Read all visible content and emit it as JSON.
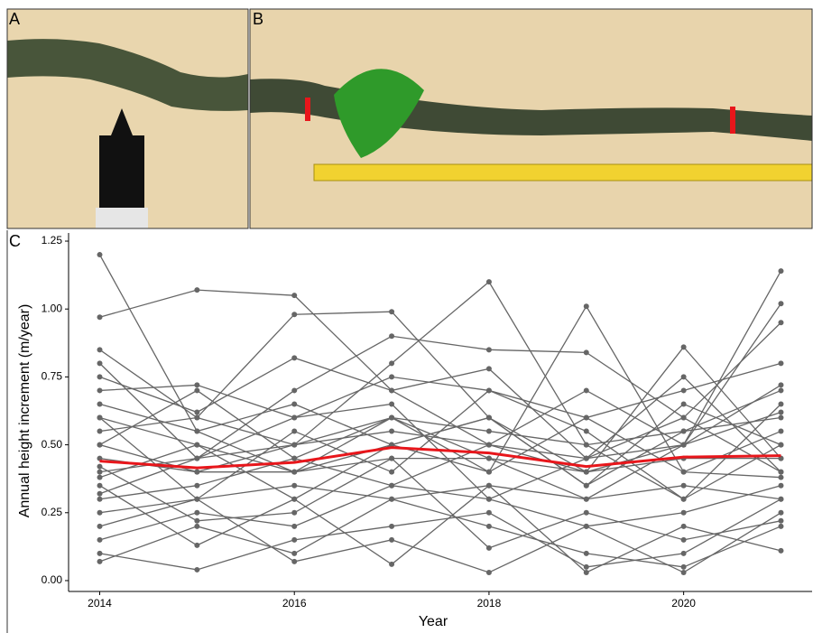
{
  "panel_labels": [
    "A",
    "B",
    "C"
  ],
  "chart_data": {
    "type": "line",
    "x_label": "Year",
    "y_label": "Annual height increment (m/year)",
    "x": [
      2014,
      2015,
      2016,
      2017,
      2018,
      2019,
      2020,
      2021
    ],
    "xlim": [
      2013.68,
      2021.32
    ],
    "xticks": [
      2014,
      2016,
      2018,
      2020
    ],
    "ylim": [
      -0.04,
      1.28
    ],
    "yticks": [
      {
        "value": 0,
        "label": "0.00"
      },
      {
        "value": 0.25,
        "label": "0.25"
      },
      {
        "value": 0.5,
        "label": "0.50"
      },
      {
        "value": 0.75,
        "label": "0.75"
      },
      {
        "value": 1,
        "label": "1.00"
      },
      {
        "value": 1.25,
        "label": "1.25"
      }
    ],
    "series": [
      {
        "color": "#666666",
        "values": [
          1.2,
          0.55,
          0.4,
          0.6,
          0.45,
          0.3,
          0.5,
          0.62
        ]
      },
      {
        "color": "#666666",
        "values": [
          0.97,
          1.07,
          1.05,
          0.7,
          0.5,
          0.45,
          0.6,
          0.4
        ]
      },
      {
        "color": "#666666",
        "values": [
          0.85,
          0.6,
          0.98,
          0.99,
          0.6,
          0.35,
          0.55,
          0.7
        ]
      },
      {
        "color": "#666666",
        "values": [
          0.5,
          0.4,
          0.5,
          0.8,
          1.1,
          0.5,
          0.3,
          0.5
        ]
      },
      {
        "color": "#666666",
        "values": [
          0.3,
          0.35,
          0.45,
          0.6,
          0.4,
          1.01,
          0.4,
          0.55
        ]
      },
      {
        "color": "#666666",
        "values": [
          0.6,
          0.5,
          0.4,
          0.5,
          0.6,
          0.4,
          0.86,
          0.45
        ]
      },
      {
        "color": "#666666",
        "values": [
          0.4,
          0.45,
          0.5,
          0.55,
          0.5,
          0.4,
          0.5,
          1.14
        ]
      },
      {
        "color": "#666666",
        "values": [
          0.07,
          0.2,
          0.1,
          0.3,
          0.2,
          0.1,
          0.05,
          0.2
        ]
      },
      {
        "color": "#666666",
        "values": [
          0.1,
          0.04,
          0.15,
          0.2,
          0.25,
          0.05,
          0.1,
          0.3
        ]
      },
      {
        "color": "#666666",
        "values": [
          0.2,
          0.3,
          0.07,
          0.15,
          0.03,
          0.2,
          0.03,
          0.25
        ]
      },
      {
        "color": "#666666",
        "values": [
          0.35,
          0.13,
          0.3,
          0.06,
          0.35,
          0.03,
          0.2,
          0.11
        ]
      },
      {
        "color": "#666666",
        "values": [
          0.45,
          0.4,
          0.4,
          0.45,
          0.45,
          0.4,
          0.45,
          0.45
        ]
      },
      {
        "color": "#666666",
        "values": [
          0.55,
          0.6,
          0.5,
          0.6,
          0.55,
          0.5,
          0.55,
          0.6
        ]
      },
      {
        "color": "#666666",
        "values": [
          0.25,
          0.3,
          0.35,
          0.3,
          0.35,
          0.3,
          0.35,
          0.3
        ]
      },
      {
        "color": "#666666",
        "values": [
          0.7,
          0.72,
          0.6,
          0.75,
          0.7,
          0.6,
          0.7,
          0.8
        ]
      },
      {
        "color": "#666666",
        "values": [
          0.8,
          0.45,
          0.7,
          0.9,
          0.85,
          0.84,
          0.6,
          0.95
        ]
      },
      {
        "color": "#666666",
        "values": [
          0.15,
          0.25,
          0.2,
          0.35,
          0.3,
          0.2,
          0.25,
          0.35
        ]
      },
      {
        "color": "#666666",
        "values": [
          0.6,
          0.3,
          0.55,
          0.4,
          0.7,
          0.55,
          0.3,
          0.65
        ]
      },
      {
        "color": "#666666",
        "values": [
          0.38,
          0.5,
          0.3,
          0.5,
          0.4,
          0.6,
          0.4,
          0.38
        ]
      },
      {
        "color": "#666666",
        "values": [
          0.65,
          0.55,
          0.65,
          0.5,
          0.6,
          0.35,
          0.65,
          0.5
        ]
      },
      {
        "color": "#666666",
        "values": [
          0.32,
          0.45,
          0.6,
          0.65,
          0.3,
          0.45,
          0.75,
          0.4
        ]
      },
      {
        "color": "#666666",
        "values": [
          0.5,
          0.7,
          0.45,
          0.35,
          0.5,
          0.7,
          0.5,
          1.02
        ]
      },
      {
        "color": "#666666",
        "values": [
          0.42,
          0.22,
          0.25,
          0.45,
          0.12,
          0.25,
          0.15,
          0.22
        ]
      },
      {
        "color": "#666666",
        "values": [
          0.75,
          0.62,
          0.82,
          0.7,
          0.78,
          0.45,
          0.5,
          0.72
        ]
      },
      {
        "color": "#e8161b",
        "values": [
          0.44,
          0.415,
          0.435,
          0.49,
          0.47,
          0.42,
          0.455,
          0.46
        ]
      }
    ]
  }
}
